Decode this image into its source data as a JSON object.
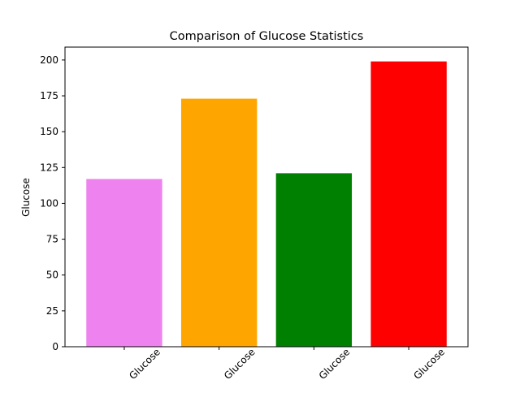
{
  "chart_data": {
    "type": "bar",
    "title": "Comparison of Glucose Statistics",
    "xlabel": "",
    "ylabel": "Glucose",
    "categories": [
      "Glucose",
      "Glucose",
      "Glucose",
      "Glucose"
    ],
    "values": [
      117,
      173,
      121,
      199
    ],
    "colors": [
      "#ee82ee",
      "#ffa500",
      "#008000",
      "#ff0000"
    ],
    "yticks": [
      0,
      25,
      50,
      75,
      100,
      125,
      150,
      175,
      200
    ],
    "ylim": [
      0,
      209
    ],
    "grid": false,
    "legend": "none"
  }
}
